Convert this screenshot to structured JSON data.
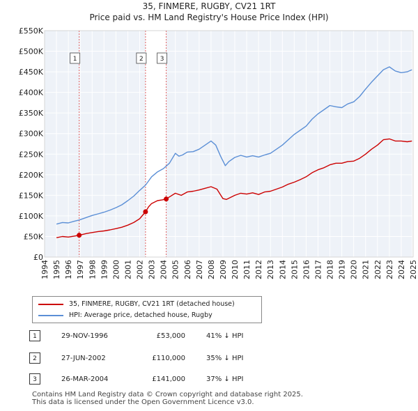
{
  "header": {
    "title": "35, FINMERE, RUGBY, CV21 1RT",
    "subtitle": "Price paid vs. HM Land Registry's House Price Index (HPI)"
  },
  "chart_data": {
    "type": "line",
    "x_range": [
      1994,
      2025
    ],
    "ylim": [
      0,
      550000
    ],
    "x_ticks": [
      "1994",
      "1995",
      "1996",
      "1997",
      "1998",
      "1999",
      "2000",
      "2001",
      "2002",
      "2003",
      "2004",
      "2005",
      "2006",
      "2007",
      "2008",
      "2009",
      "2010",
      "2011",
      "2012",
      "2013",
      "2014",
      "2015",
      "2016",
      "2017",
      "2018",
      "2019",
      "2020",
      "2021",
      "2022",
      "2023",
      "2024",
      "2025"
    ],
    "y_ticks": [
      {
        "value": 0,
        "label": "£0"
      },
      {
        "value": 50000,
        "label": "£50K"
      },
      {
        "value": 100000,
        "label": "£100K"
      },
      {
        "value": 150000,
        "label": "£150K"
      },
      {
        "value": 200000,
        "label": "£200K"
      },
      {
        "value": 250000,
        "label": "£250K"
      },
      {
        "value": 300000,
        "label": "£300K"
      },
      {
        "value": 350000,
        "label": "£350K"
      },
      {
        "value": 400000,
        "label": "£400K"
      },
      {
        "value": 450000,
        "label": "£450K"
      },
      {
        "value": 500000,
        "label": "£500K"
      },
      {
        "value": 550000,
        "label": "£550K"
      }
    ],
    "series": [
      {
        "name": "35, FINMERE, RUGBY, CV21 1RT (detached house)",
        "color": "#cc0000",
        "points": [
          [
            1995.0,
            47000
          ],
          [
            1995.5,
            50000
          ],
          [
            1996.0,
            48500
          ],
          [
            1996.5,
            51000
          ],
          [
            1996.91,
            53000
          ],
          [
            1997.5,
            57000
          ],
          [
            1998.0,
            59500
          ],
          [
            1998.5,
            62000
          ],
          [
            1999.0,
            63500
          ],
          [
            1999.5,
            66000
          ],
          [
            2000.0,
            69000
          ],
          [
            2000.5,
            72500
          ],
          [
            2001.0,
            77500
          ],
          [
            2001.5,
            84000
          ],
          [
            2002.0,
            93000
          ],
          [
            2002.49,
            110000
          ],
          [
            2002.75,
            122000
          ],
          [
            2003.0,
            130000
          ],
          [
            2003.5,
            137000
          ],
          [
            2003.9,
            139000
          ],
          [
            2004.23,
            141000
          ],
          [
            2004.5,
            146000
          ],
          [
            2005.0,
            155000
          ],
          [
            2005.5,
            150000
          ],
          [
            2006.0,
            158000
          ],
          [
            2006.5,
            160000
          ],
          [
            2007.0,
            163000
          ],
          [
            2007.5,
            167000
          ],
          [
            2008.0,
            171000
          ],
          [
            2008.5,
            165000
          ],
          [
            2009.0,
            142000
          ],
          [
            2009.3,
            140000
          ],
          [
            2010.0,
            150000
          ],
          [
            2010.5,
            155000
          ],
          [
            2011.0,
            153000
          ],
          [
            2011.5,
            156000
          ],
          [
            2012.0,
            152000
          ],
          [
            2012.5,
            158000
          ],
          [
            2013.0,
            160000
          ],
          [
            2013.5,
            165000
          ],
          [
            2014.0,
            170000
          ],
          [
            2014.5,
            177000
          ],
          [
            2015.0,
            182000
          ],
          [
            2015.5,
            188000
          ],
          [
            2016.0,
            195000
          ],
          [
            2016.5,
            205000
          ],
          [
            2017.0,
            212000
          ],
          [
            2017.5,
            217000
          ],
          [
            2018.0,
            224000
          ],
          [
            2018.5,
            228000
          ],
          [
            2019.0,
            228000
          ],
          [
            2019.5,
            232000
          ],
          [
            2020.0,
            233000
          ],
          [
            2020.5,
            240000
          ],
          [
            2021.0,
            250000
          ],
          [
            2021.5,
            262000
          ],
          [
            2022.0,
            272000
          ],
          [
            2022.5,
            285000
          ],
          [
            2023.0,
            287000
          ],
          [
            2023.5,
            282000
          ],
          [
            2024.0,
            282000
          ],
          [
            2024.5,
            280000
          ],
          [
            2024.9,
            282000
          ]
        ]
      },
      {
        "name": "HPI: Average price, detached house, Rugby",
        "color": "#5b8fd6",
        "points": [
          [
            1995.0,
            80000
          ],
          [
            1995.5,
            84000
          ],
          [
            1996.0,
            83000
          ],
          [
            1996.5,
            87000
          ],
          [
            1996.91,
            90000
          ],
          [
            1997.5,
            96000
          ],
          [
            1998.0,
            101000
          ],
          [
            1998.5,
            105000
          ],
          [
            1999.0,
            109000
          ],
          [
            1999.5,
            114000
          ],
          [
            2000.0,
            120000
          ],
          [
            2000.5,
            127000
          ],
          [
            2001.0,
            137000
          ],
          [
            2001.5,
            148000
          ],
          [
            2002.0,
            162000
          ],
          [
            2002.5,
            175000
          ],
          [
            2003.0,
            195000
          ],
          [
            2003.5,
            207000
          ],
          [
            2004.0,
            215000
          ],
          [
            2004.5,
            228000
          ],
          [
            2005.0,
            252000
          ],
          [
            2005.3,
            245000
          ],
          [
            2005.6,
            248000
          ],
          [
            2006.0,
            255000
          ],
          [
            2006.5,
            256000
          ],
          [
            2007.0,
            262000
          ],
          [
            2007.5,
            272000
          ],
          [
            2008.0,
            282000
          ],
          [
            2008.4,
            272000
          ],
          [
            2008.8,
            245000
          ],
          [
            2009.2,
            222000
          ],
          [
            2009.5,
            232000
          ],
          [
            2010.0,
            242000
          ],
          [
            2010.5,
            247000
          ],
          [
            2011.0,
            243000
          ],
          [
            2011.5,
            246000
          ],
          [
            2012.0,
            243000
          ],
          [
            2012.5,
            248000
          ],
          [
            2013.0,
            252000
          ],
          [
            2013.5,
            262000
          ],
          [
            2014.0,
            272000
          ],
          [
            2014.5,
            285000
          ],
          [
            2015.0,
            298000
          ],
          [
            2015.5,
            308000
          ],
          [
            2016.0,
            318000
          ],
          [
            2016.5,
            335000
          ],
          [
            2017.0,
            348000
          ],
          [
            2017.5,
            358000
          ],
          [
            2018.0,
            368000
          ],
          [
            2018.5,
            365000
          ],
          [
            2019.0,
            363000
          ],
          [
            2019.5,
            372000
          ],
          [
            2020.0,
            377000
          ],
          [
            2020.5,
            390000
          ],
          [
            2021.0,
            408000
          ],
          [
            2021.5,
            425000
          ],
          [
            2022.0,
            440000
          ],
          [
            2022.5,
            455000
          ],
          [
            2023.0,
            462000
          ],
          [
            2023.5,
            452000
          ],
          [
            2024.0,
            448000
          ],
          [
            2024.5,
            450000
          ],
          [
            2024.9,
            455000
          ]
        ]
      }
    ],
    "sales": [
      {
        "id": "1",
        "x": 1996.91,
        "price": 53000
      },
      {
        "id": "2",
        "x": 2002.49,
        "price": 110000
      },
      {
        "id": "3",
        "x": 2004.23,
        "price": 141000
      }
    ]
  },
  "legend": {
    "items": [
      {
        "label": "35, FINMERE, RUGBY, CV21 1RT (detached house)",
        "color": "#cc0000"
      },
      {
        "label": "HPI: Average price, detached house, Rugby",
        "color": "#5b8fd6"
      }
    ]
  },
  "sales_table": [
    {
      "id": "1",
      "date": "29-NOV-1996",
      "price": "£53,000",
      "hpi": "41% ↓ HPI"
    },
    {
      "id": "2",
      "date": "27-JUN-2002",
      "price": "£110,000",
      "hpi": "35% ↓ HPI"
    },
    {
      "id": "3",
      "date": "26-MAR-2004",
      "price": "£141,000",
      "hpi": "37% ↓ HPI"
    }
  ],
  "footer": {
    "line1": "Contains HM Land Registry data © Crown copyright and database right 2025.",
    "line2": "This data is licensed under the Open Government Licence v3.0."
  }
}
